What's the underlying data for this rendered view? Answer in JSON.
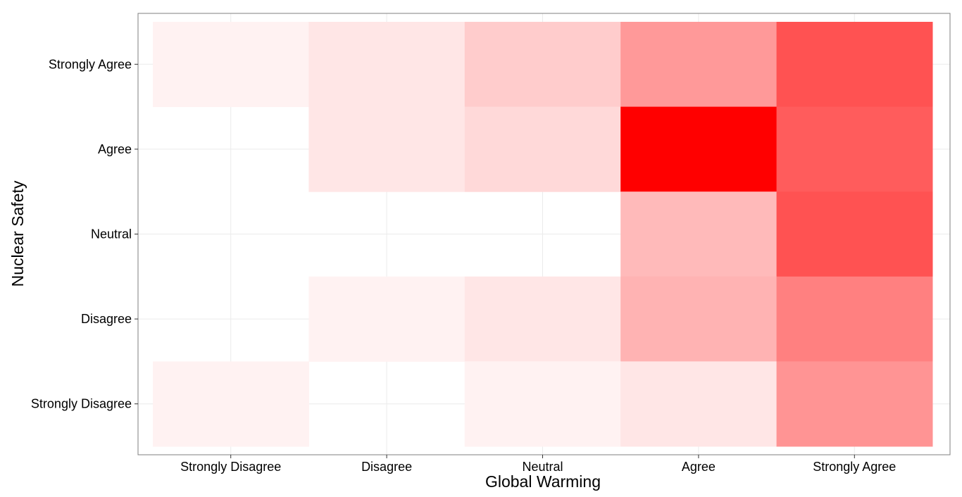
{
  "chart_data": {
    "type": "heatmap",
    "title": "",
    "xlabel": "Global Warming",
    "ylabel": "Nuclear Safety",
    "x_categories": [
      "Strongly Disagree",
      "Disagree",
      "Neutral",
      "Agree",
      "Strongly Agree"
    ],
    "y_categories": [
      "Strongly Disagree",
      "Disagree",
      "Neutral",
      "Agree",
      "Strongly Agree"
    ],
    "color_low": "#ffffff",
    "color_high": "#ff0000",
    "panel_border_color": "#7f7f7f",
    "grid": true,
    "legend": "none",
    "cells": [
      {
        "x": "Strongly Disagree",
        "y": "Strongly Agree",
        "value": 0.05
      },
      {
        "x": "Disagree",
        "y": "Strongly Agree",
        "value": 0.1
      },
      {
        "x": "Neutral",
        "y": "Strongly Agree",
        "value": 0.2
      },
      {
        "x": "Agree",
        "y": "Strongly Agree",
        "value": 0.4
      },
      {
        "x": "Strongly Agree",
        "y": "Strongly Agree",
        "value": 0.68
      },
      {
        "x": "Disagree",
        "y": "Agree",
        "value": 0.1
      },
      {
        "x": "Neutral",
        "y": "Agree",
        "value": 0.15
      },
      {
        "x": "Agree",
        "y": "Agree",
        "value": 1.0
      },
      {
        "x": "Strongly Agree",
        "y": "Agree",
        "value": 0.64
      },
      {
        "x": "Agree",
        "y": "Neutral",
        "value": 0.27
      },
      {
        "x": "Strongly Agree",
        "y": "Neutral",
        "value": 0.68
      },
      {
        "x": "Disagree",
        "y": "Disagree",
        "value": 0.05
      },
      {
        "x": "Neutral",
        "y": "Disagree",
        "value": 0.1
      },
      {
        "x": "Agree",
        "y": "Disagree",
        "value": 0.3
      },
      {
        "x": "Strongly Agree",
        "y": "Disagree",
        "value": 0.5
      },
      {
        "x": "Strongly Disagree",
        "y": "Strongly Disagree",
        "value": 0.05
      },
      {
        "x": "Neutral",
        "y": "Strongly Disagree",
        "value": 0.05
      },
      {
        "x": "Agree",
        "y": "Strongly Disagree",
        "value": 0.1
      },
      {
        "x": "Strongly Agree",
        "y": "Strongly Disagree",
        "value": 0.42
      }
    ]
  }
}
